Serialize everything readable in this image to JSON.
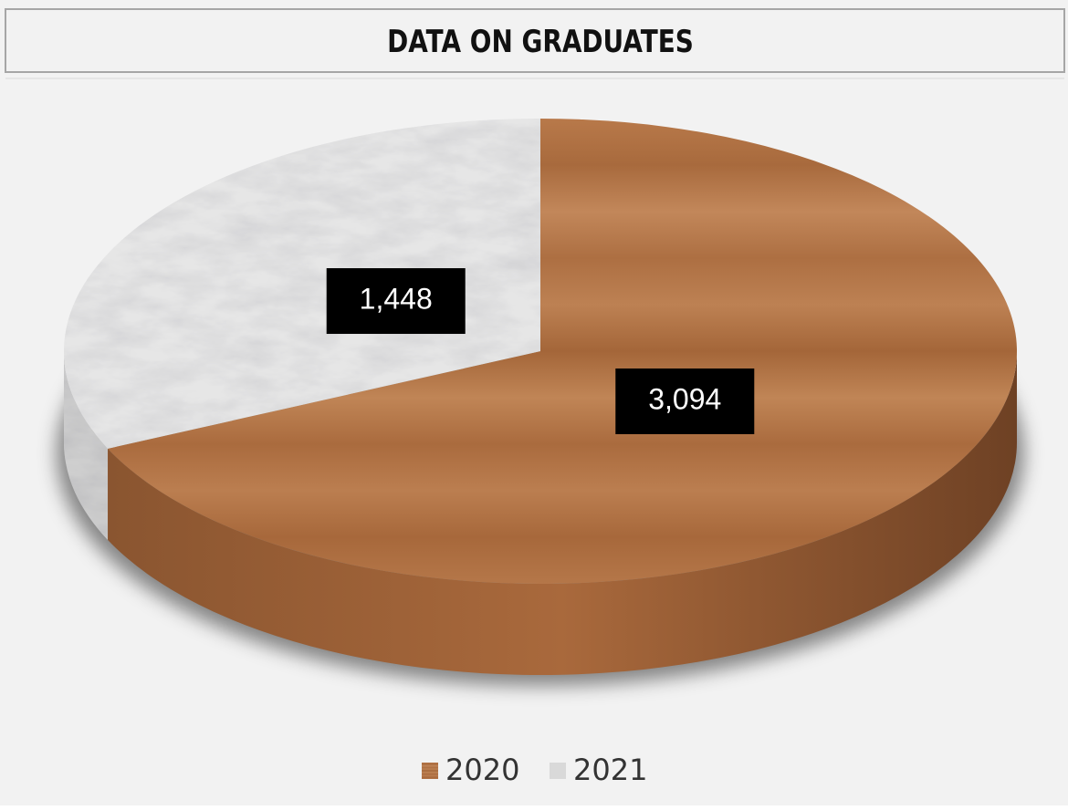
{
  "chart_data": {
    "type": "pie3d",
    "title": "DATA ON GRADUATES",
    "categories": [
      "2020",
      "2021"
    ],
    "values": [
      3094,
      1448
    ],
    "value_labels": [
      "3,094",
      "1,448"
    ],
    "colors": [
      "#b87a4b",
      "#e6e6e6"
    ],
    "legend": "bottom"
  }
}
